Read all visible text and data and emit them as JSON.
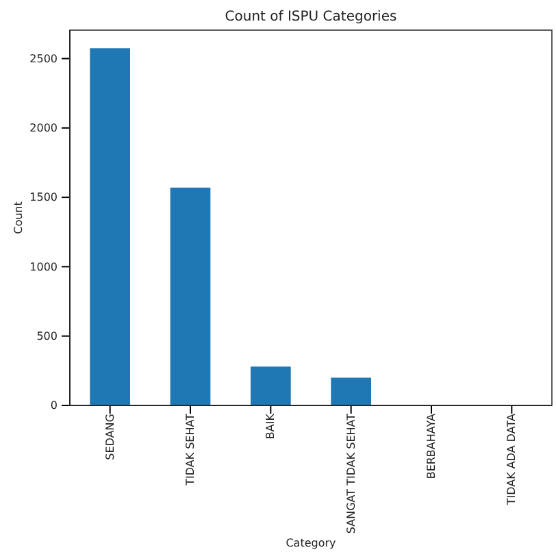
{
  "chart_data": {
    "type": "bar",
    "title": "Count of ISPU Categories",
    "xlabel": "Category",
    "ylabel": "Count",
    "categories": [
      "SEDANG",
      "TIDAK SEHAT",
      "BAIK",
      "SANGAT TIDAK SEHAT",
      "BERBAHAYA",
      "TIDAK ADA DATA"
    ],
    "values": [
      2575,
      1570,
      280,
      200,
      0,
      0
    ],
    "color": "#1f77b4",
    "ylim": [
      0,
      2705
    ],
    "yticks": [
      0,
      500,
      1000,
      1500,
      2000,
      2500
    ]
  }
}
